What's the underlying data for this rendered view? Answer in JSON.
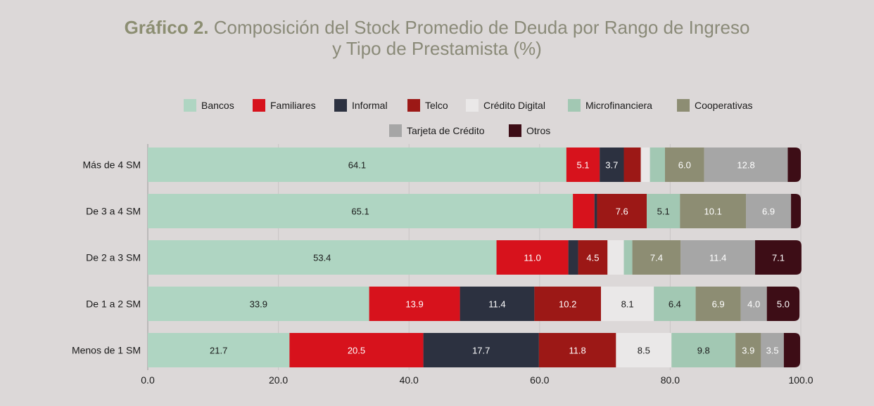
{
  "title": {
    "bold": "Gráfico 2.",
    "line1": " Composición del Stock Promedio de Deuda por Rango de Ingreso",
    "line2": "y Tipo de Prestamista (%)"
  },
  "chart_data": {
    "type": "bar",
    "orientation": "horizontal",
    "stacked": true,
    "categories": [
      "Más de 4 SM",
      "De 3 a 4 SM",
      "De 2 a 3 SM",
      "De 1 a 2 SM",
      "Menos de 1 SM"
    ],
    "series": [
      {
        "name": "Bancos",
        "color": "#afd5c2",
        "label_color": "#1a1a1a",
        "values": [
          64.1,
          65.1,
          53.4,
          33.9,
          21.7
        ]
      },
      {
        "name": "Familiares",
        "color": "#d7121c",
        "label_color": "#ffffff",
        "values": [
          5.1,
          3.3,
          11.0,
          13.9,
          20.5
        ]
      },
      {
        "name": "Informal",
        "color": "#2c3140",
        "label_color": "#ffffff",
        "values": [
          3.7,
          0.4,
          1.5,
          11.4,
          17.7
        ]
      },
      {
        "name": "Telco",
        "color": "#9c1816",
        "label_color": "#ffffff",
        "values": [
          2.6,
          7.6,
          4.5,
          10.2,
          11.8
        ]
      },
      {
        "name": "Crédito Digital",
        "color": "#eae8e8",
        "label_color": "#1a1a1a",
        "values": [
          1.4,
          0.0,
          2.5,
          8.1,
          8.5
        ]
      },
      {
        "name": "Microfinanciera",
        "color": "#a2c8b3",
        "label_color": "#1a1a1a",
        "values": [
          2.3,
          5.1,
          1.3,
          6.4,
          9.8
        ]
      },
      {
        "name": "Cooperativas",
        "color": "#8d8d73",
        "label_color": "#ffffff",
        "values": [
          6.0,
          10.1,
          7.4,
          6.9,
          3.9
        ]
      },
      {
        "name": "Tarjeta de Crédito",
        "color": "#a6a6a6",
        "label_color": "#ffffff",
        "values": [
          12.8,
          6.9,
          11.4,
          4.0,
          3.5
        ]
      },
      {
        "name": "Otros",
        "color": "#3d0d16",
        "label_color": "#ffffff",
        "values": [
          2.0,
          1.5,
          7.1,
          5.0,
          2.5
        ]
      }
    ],
    "data_labels": [
      [
        "64.1",
        "5.1",
        "3.7",
        "",
        "",
        "",
        "6.0",
        "12.8",
        ""
      ],
      [
        "65.1",
        "",
        "",
        "7.6",
        "",
        "5.1",
        "10.1",
        "6.9",
        ""
      ],
      [
        "53.4",
        "11.0",
        "",
        "4.5",
        "",
        "",
        "7.4",
        "11.4",
        "7.1"
      ],
      [
        "33.9",
        "13.9",
        "11.4",
        "10.2",
        "8.1",
        "6.4",
        "6.9",
        "4.0",
        "5.0"
      ],
      [
        "21.7",
        "20.5",
        "17.7",
        "11.8",
        "8.5",
        "9.8",
        "3.9",
        "3.5",
        ""
      ]
    ],
    "x_ticks": [
      "0.0",
      "20.0",
      "40.0",
      "60.0",
      "80.0",
      "100.0"
    ],
    "xlim": [
      0,
      100
    ],
    "grid": true,
    "legend_position": "top-center"
  }
}
